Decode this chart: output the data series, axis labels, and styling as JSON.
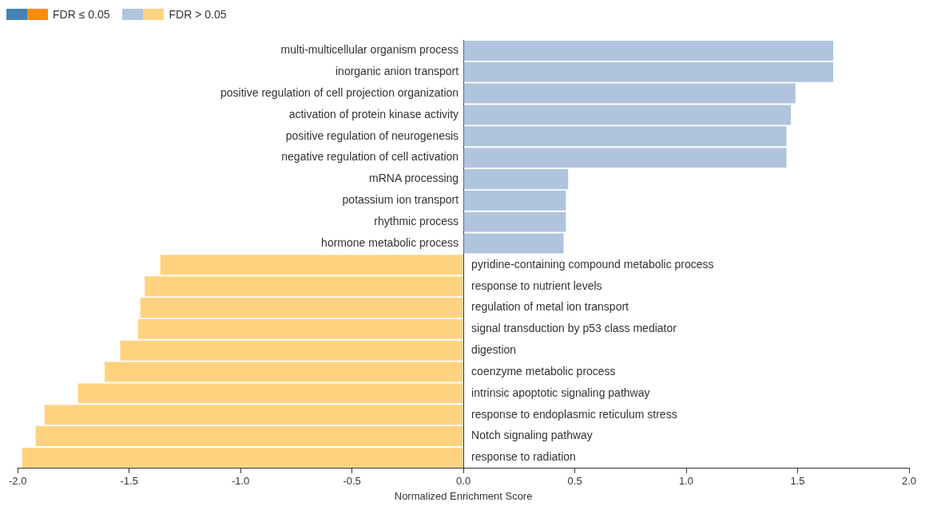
{
  "chart_data": {
    "type": "bar",
    "orientation": "horizontal",
    "xlabel": "Normalized Enrichment Score",
    "categories": [
      "multi-multicellular organism process",
      "inorganic anion transport",
      "positive regulation of cell projection organization",
      "activation of protein kinase activity",
      "positive regulation of neurogenesis",
      "negative regulation of cell activation",
      "mRNA processing",
      "potassium ion transport",
      "rhythmic process",
      "hormone metabolic process",
      "pyridine-containing compound metabolic process",
      "response to nutrient levels",
      "regulation of metal ion transport",
      "signal transduction by p53 class mediator",
      "digestion",
      "coenzyme metabolic process",
      "intrinsic apoptotic signaling pathway",
      "response to endoplasmic reticulum stress",
      "Notch signaling pathway",
      "response to radiation"
    ],
    "series": [
      {
        "name": "FDR ≤ 0.05",
        "colors": [
          "#4682b4",
          "#4682b4",
          "#4682b4",
          "#4682b4",
          "#4682b4",
          "#4682b4",
          "#4682b4",
          "#4682b4",
          "#4682b4",
          "#4682b4",
          "#ff8c00",
          "#ff8c00",
          "#ff8c00",
          "#ff8c00",
          "#ff8c00",
          "#ff8c00",
          "#ff8c00",
          "#ff8c00",
          "#ff8c00",
          "#ff8c00"
        ],
        "values": [
          null,
          null,
          null,
          null,
          null,
          null,
          null,
          null,
          null,
          null,
          null,
          null,
          null,
          null,
          null,
          null,
          null,
          null,
          null,
          null
        ]
      },
      {
        "name": "FDR > 0.05",
        "colors": [
          "#b0c4de",
          "#b0c4de",
          "#b0c4de",
          "#b0c4de",
          "#b0c4de",
          "#b0c4de",
          "#b0c4de",
          "#b0c4de",
          "#b0c4de",
          "#b0c4de",
          "#ffd280",
          "#ffd280",
          "#ffd280",
          "#ffd280",
          "#ffd280",
          "#ffd280",
          "#ffd280",
          "#ffd280",
          "#ffd280",
          "#ffd280"
        ],
        "values": [
          1.66,
          1.66,
          1.49,
          1.47,
          1.45,
          1.45,
          0.47,
          0.46,
          0.46,
          0.45,
          -1.36,
          -1.43,
          -1.45,
          -1.46,
          -1.54,
          -1.61,
          -1.73,
          -1.88,
          -1.92,
          -1.98
        ]
      }
    ],
    "xlim": [
      -2,
      2
    ],
    "xticks": [
      {
        "value": -2,
        "label": "-2.0"
      },
      {
        "value": -1.5,
        "label": "-1.5"
      },
      {
        "value": -1,
        "label": "-1.0"
      },
      {
        "value": -0.5,
        "label": "-0.5"
      },
      {
        "value": 0,
        "label": "0.0"
      },
      {
        "value": 0.5,
        "label": "0.5"
      },
      {
        "value": 1,
        "label": "1.0"
      },
      {
        "value": 1.5,
        "label": "1.5"
      },
      {
        "value": 2,
        "label": "2.0"
      }
    ],
    "grid": false,
    "legend": "top left"
  }
}
